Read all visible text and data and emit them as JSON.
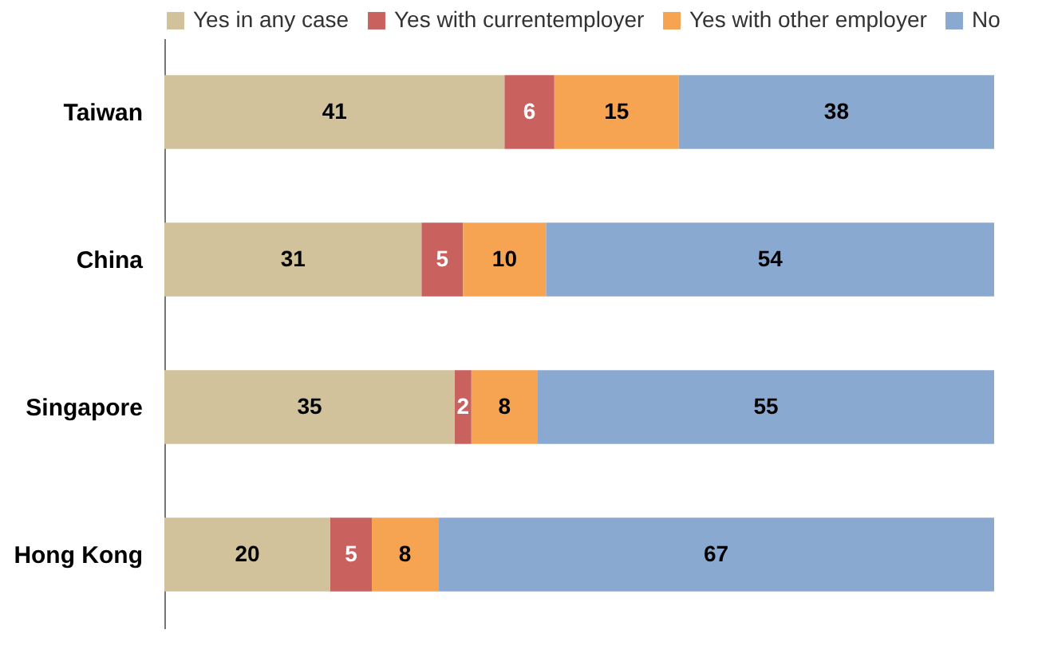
{
  "chart_data": {
    "type": "bar",
    "orientation": "horizontal",
    "stacked": true,
    "data_labels": true,
    "legend": "top",
    "tick_labels": "y",
    "categories": [
      "Taiwan",
      "China",
      "Singapore",
      "Hong Kong"
    ],
    "series": [
      {
        "name": "Yes in any case",
        "color": "#d1c29b",
        "values": [
          41,
          31,
          35,
          20
        ]
      },
      {
        "name": "Yes with currentemployer",
        "color": "#c9625f",
        "values": [
          6,
          5,
          2,
          5
        ]
      },
      {
        "name": "Yes with other employer",
        "color": "#f6a452",
        "values": [
          15,
          10,
          8,
          8
        ]
      },
      {
        "name": "No",
        "color": "#8aa9d1",
        "values": [
          38,
          54,
          55,
          67
        ]
      }
    ]
  }
}
